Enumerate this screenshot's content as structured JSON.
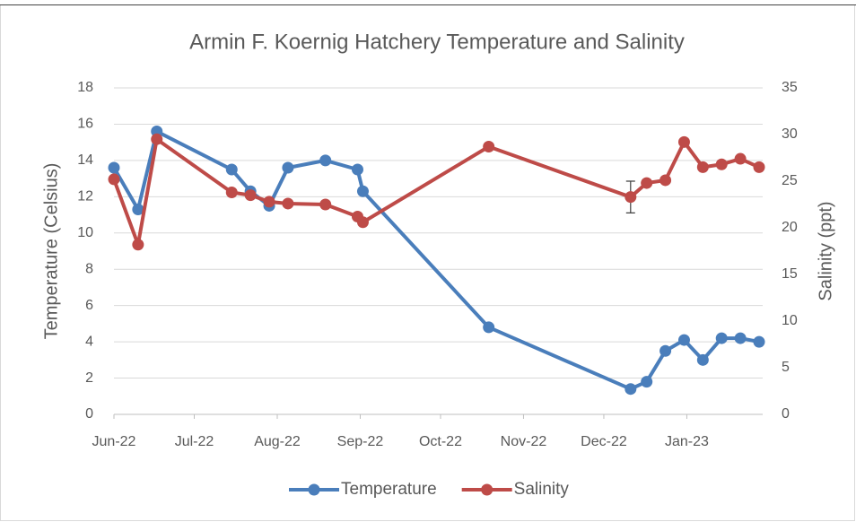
{
  "chart_data": {
    "type": "line",
    "title": "Armin F. Koernig Hatchery Temperature and Salinity",
    "y_label": "Temperature (Celsius)",
    "y2_label": "Salinity (ppt)",
    "x": [
      44713,
      44722,
      44729,
      44757,
      44764,
      44771,
      44778,
      44792,
      44804,
      44806,
      44853,
      44906,
      44912,
      44919,
      44926,
      44933,
      44940,
      44947,
      44954
    ],
    "xlim": [
      44713,
      44954
    ],
    "xticks": [
      {
        "value": 44713,
        "label": "Jun-22"
      },
      {
        "value": 44743,
        "label": "Jul-22"
      },
      {
        "value": 44774,
        "label": "Aug-22"
      },
      {
        "value": 44805,
        "label": "Sep-22"
      },
      {
        "value": 44835,
        "label": "Oct-22"
      },
      {
        "value": 44866,
        "label": "Nov-22"
      },
      {
        "value": 44896,
        "label": "Dec-22"
      },
      {
        "value": 44927,
        "label": "Jan-23"
      }
    ],
    "ylim": [
      0,
      18
    ],
    "yticks": [
      0,
      2,
      4,
      6,
      8,
      10,
      12,
      14,
      16,
      18
    ],
    "y2lim": [
      0,
      35
    ],
    "y2ticks": [
      0,
      5,
      10,
      15,
      20,
      25,
      30,
      35
    ],
    "grid": true,
    "legend": "bottom",
    "series": [
      {
        "name": "Temperature",
        "color": "#4a7ebb",
        "values": [
          13.6,
          11.3,
          15.6,
          13.5,
          12.3,
          11.5,
          13.6,
          14.0,
          13.5,
          12.3,
          4.8,
          1.4,
          1.8,
          3.5,
          4.1,
          3.0,
          4.2,
          4.2,
          4.0
        ]
      },
      {
        "name": "Salinity",
        "color": "#be4b48",
        "axis": "y2",
        "values": [
          25.2,
          18.2,
          29.5,
          23.8,
          23.5,
          22.8,
          22.6,
          22.5,
          21.2,
          20.6,
          28.7,
          23.3,
          24.8,
          25.1,
          29.2,
          26.5,
          26.8,
          27.4,
          26.5
        ],
        "errors": [
          null,
          null,
          null,
          null,
          null,
          null,
          null,
          null,
          null,
          null,
          null,
          1.7,
          null,
          null,
          null,
          null,
          null,
          null,
          null
        ]
      }
    ]
  }
}
